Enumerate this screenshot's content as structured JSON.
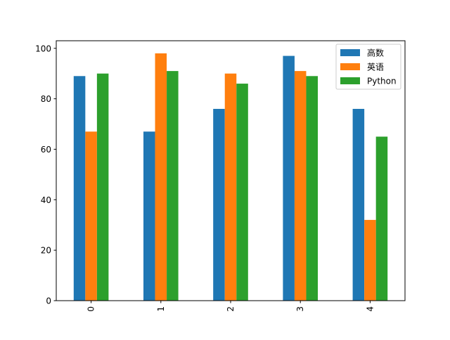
{
  "chart_data": {
    "type": "bar",
    "categories": [
      "0",
      "1",
      "2",
      "3",
      "4"
    ],
    "series": [
      {
        "name": "高数",
        "color": "#1f77b4",
        "values": [
          89,
          67,
          76,
          97,
          76
        ]
      },
      {
        "name": "英语",
        "color": "#ff7f0e",
        "values": [
          67,
          98,
          90,
          91,
          32
        ]
      },
      {
        "name": "Python",
        "color": "#2ca02c",
        "values": [
          90,
          91,
          86,
          89,
          65
        ]
      }
    ],
    "ylim": [
      0,
      103
    ],
    "yticks": [
      0,
      20,
      40,
      60,
      80,
      100
    ],
    "legend_position": "top-right",
    "x_tick_rotation": 90,
    "grid": false
  }
}
